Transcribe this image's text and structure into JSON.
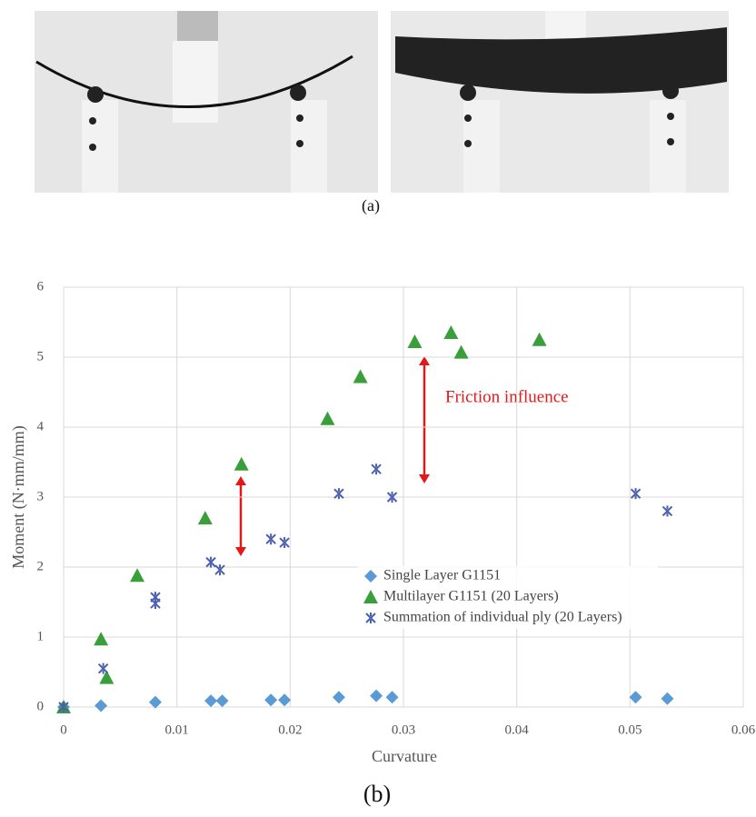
{
  "captions": {
    "a": "(a)",
    "b": "(b)"
  },
  "chart_data": {
    "type": "scatter",
    "x_label": "Curvature",
    "y_label": "Moment (N·mm/mm)",
    "annotation": "Friction influence",
    "xlim": [
      0,
      0.06
    ],
    "xticks": [
      0,
      0.01,
      0.02,
      0.03,
      0.04,
      0.05,
      0.06
    ],
    "ylim": [
      0,
      6
    ],
    "yticks": [
      0,
      1,
      2,
      3,
      4,
      5,
      6
    ],
    "grid": true,
    "series": [
      {
        "name": "Single Layer G1151",
        "color": "#5b9bd5",
        "marker": "diamond",
        "x": [
          0,
          0.0033,
          0.0081,
          0.013,
          0.014,
          0.0183,
          0.0195,
          0.0243,
          0.0276,
          0.029,
          0.0505,
          0.0533
        ],
        "values": [
          0,
          0.02,
          0.07,
          0.09,
          0.09,
          0.1,
          0.1,
          0.14,
          0.16,
          0.14,
          0.14,
          0.12
        ]
      },
      {
        "name": "Multilayer G1151 (20 Layers)",
        "color": "#3a9e3a",
        "marker": "triangle",
        "x": [
          0,
          0.0033,
          0.0038,
          0.0065,
          0.0125,
          0.0157,
          0.0233,
          0.0262,
          0.031,
          0.0342,
          0.0351,
          0.042
        ],
        "values": [
          0,
          0.97,
          0.42,
          1.88,
          2.7,
          3.47,
          4.12,
          4.72,
          5.22,
          5.35,
          5.07,
          5.25
        ]
      },
      {
        "name": "Summation of individual ply (20 Layers)",
        "color": "#4a5fb0",
        "marker": "x",
        "x": [
          0,
          0.0035,
          0.0081,
          0.0081,
          0.013,
          0.0138,
          0.0183,
          0.0195,
          0.0243,
          0.0276,
          0.029,
          0.0505,
          0.0533
        ],
        "values": [
          0,
          0.55,
          1.57,
          1.48,
          2.07,
          1.96,
          2.4,
          2.35,
          3.05,
          3.4,
          3.0,
          3.05,
          2.8
        ]
      }
    ]
  }
}
